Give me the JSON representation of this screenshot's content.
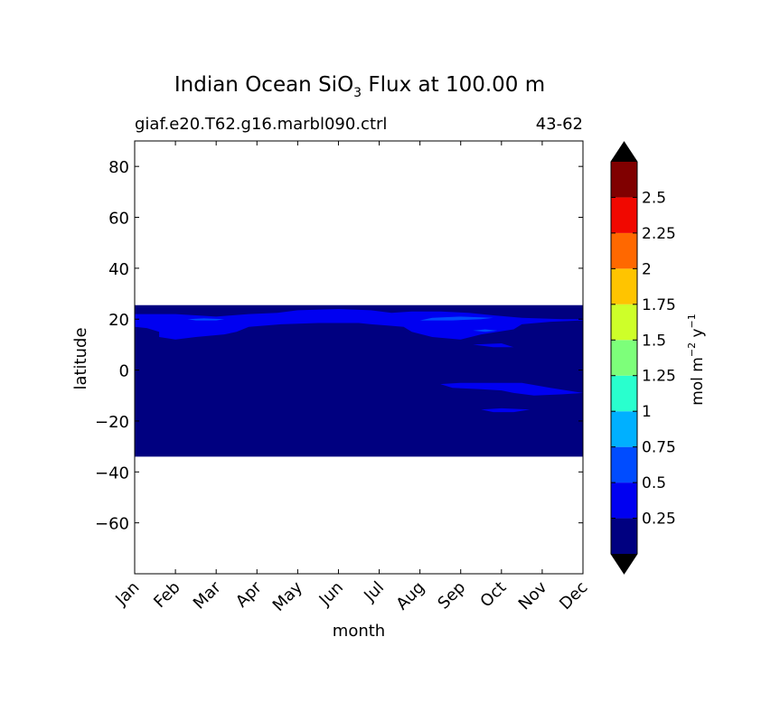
{
  "chart_data": {
    "type": "heatmap",
    "plot_kind": "filled-contour",
    "title": {
      "prefix": "Indian Ocean SiO",
      "subscript": "3",
      "suffix": " Flux at 100.00 m"
    },
    "subtitle_left": "giaf.e20.T62.g16.marbl090.ctrl",
    "subtitle_right": "43-62",
    "xlabel": "month",
    "ylabel": "latitude",
    "x_categories": [
      "Jan",
      "Feb",
      "Mar",
      "Apr",
      "May",
      "Jun",
      "Jul",
      "Aug",
      "Sep",
      "Oct",
      "Nov",
      "Dec"
    ],
    "xlim": [
      1,
      12
    ],
    "ylim": [
      -80,
      90
    ],
    "y_ticks": [
      80,
      60,
      40,
      20,
      0,
      -20,
      -40,
      -60
    ],
    "y_tick_labels": [
      "80",
      "60",
      "40",
      "20",
      "0",
      "−20",
      "−40",
      "−60"
    ],
    "data_lat_range": [
      -34,
      25.5
    ],
    "colorbar": {
      "label": {
        "base": "mol m",
        "exp1": "−2",
        "mid": " y",
        "exp2": "−1"
      },
      "levels": [
        0,
        0.25,
        0.5,
        0.75,
        1,
        1.25,
        1.5,
        1.75,
        2,
        2.25,
        2.5,
        2.75
      ],
      "tick_values": [
        0.25,
        0.5,
        0.75,
        1,
        1.25,
        1.5,
        1.75,
        2,
        2.25,
        2.5
      ],
      "tick_labels": [
        "0.25",
        "0.5",
        "0.75",
        "1",
        "1.25",
        "1.5",
        "1.75",
        "2",
        "2.25",
        "2.5"
      ],
      "colors": [
        "#000080",
        "#0000f1",
        "#004cff",
        "#00b0ff",
        "#29ffce",
        "#7dff7a",
        "#ceff29",
        "#ffc400",
        "#ff6800",
        "#f10800",
        "#800000"
      ],
      "under_color": "#000000",
      "over_color": "#000000"
    },
    "regions": [
      {
        "level": 1,
        "points": [
          [
            1,
            22
          ],
          [
            1.4,
            22
          ],
          [
            2,
            22
          ],
          [
            2.5,
            21.5
          ],
          [
            3,
            21
          ],
          [
            3.8,
            22
          ],
          [
            4.5,
            22.5
          ],
          [
            5,
            23.5
          ],
          [
            6,
            24
          ],
          [
            6.8,
            23.5
          ],
          [
            7.3,
            22.5
          ],
          [
            7.8,
            23
          ],
          [
            8.5,
            23
          ],
          [
            9.2,
            22.5
          ],
          [
            9.8,
            21.5
          ],
          [
            10.5,
            20.5
          ],
          [
            11.5,
            20
          ],
          [
            12,
            20
          ],
          [
            12,
            19.5
          ],
          [
            11.2,
            19
          ],
          [
            10.5,
            18
          ],
          [
            10.3,
            16
          ],
          [
            9.5,
            14
          ],
          [
            9,
            12
          ],
          [
            8.3,
            13
          ],
          [
            7.8,
            15
          ],
          [
            7.6,
            17
          ],
          [
            7.2,
            17.5
          ],
          [
            6.8,
            18
          ],
          [
            6.5,
            18.5
          ],
          [
            5.5,
            18.5
          ],
          [
            4.6,
            18
          ],
          [
            3.8,
            17
          ],
          [
            3.5,
            15
          ],
          [
            3.2,
            14
          ],
          [
            2.5,
            13
          ],
          [
            2,
            12
          ],
          [
            1.6,
            13
          ],
          [
            1.6,
            15
          ],
          [
            1.3,
            16.5
          ],
          [
            1,
            17
          ]
        ]
      },
      {
        "level": 1,
        "points": [
          [
            8.5,
            -5.5
          ],
          [
            9,
            -5
          ],
          [
            10.5,
            -5
          ],
          [
            11.2,
            -7
          ],
          [
            12,
            -9
          ],
          [
            11.5,
            -9.5
          ],
          [
            10.8,
            -10
          ],
          [
            10.3,
            -9
          ],
          [
            10,
            -8
          ],
          [
            9.5,
            -7.5
          ],
          [
            8.8,
            -7
          ]
        ]
      },
      {
        "level": 1,
        "points": [
          [
            9.5,
            -15.5
          ],
          [
            10,
            -15
          ],
          [
            10.7,
            -15.5
          ],
          [
            10.3,
            -16.5
          ],
          [
            9.8,
            -16.5
          ]
        ]
      },
      {
        "level": 1,
        "points": [
          [
            9.3,
            10
          ],
          [
            9.8,
            9
          ],
          [
            10.3,
            9
          ],
          [
            10,
            10.5
          ]
        ]
      },
      {
        "level": 2,
        "points": [
          [
            2.3,
            20
          ],
          [
            2.5,
            19.5
          ],
          [
            3,
            19.5
          ],
          [
            3.2,
            20
          ],
          [
            2.7,
            20.3
          ]
        ]
      },
      {
        "level": 2,
        "points": [
          [
            9.3,
            15.5
          ],
          [
            9.6,
            15
          ],
          [
            9.9,
            15.5
          ],
          [
            9.6,
            16
          ]
        ]
      },
      {
        "level": 2,
        "points": [
          [
            8,
            19.5
          ],
          [
            8.8,
            19.5
          ],
          [
            9.5,
            20
          ],
          [
            9.8,
            20.5
          ],
          [
            9,
            21
          ],
          [
            8.3,
            20.5
          ]
        ]
      }
    ]
  }
}
